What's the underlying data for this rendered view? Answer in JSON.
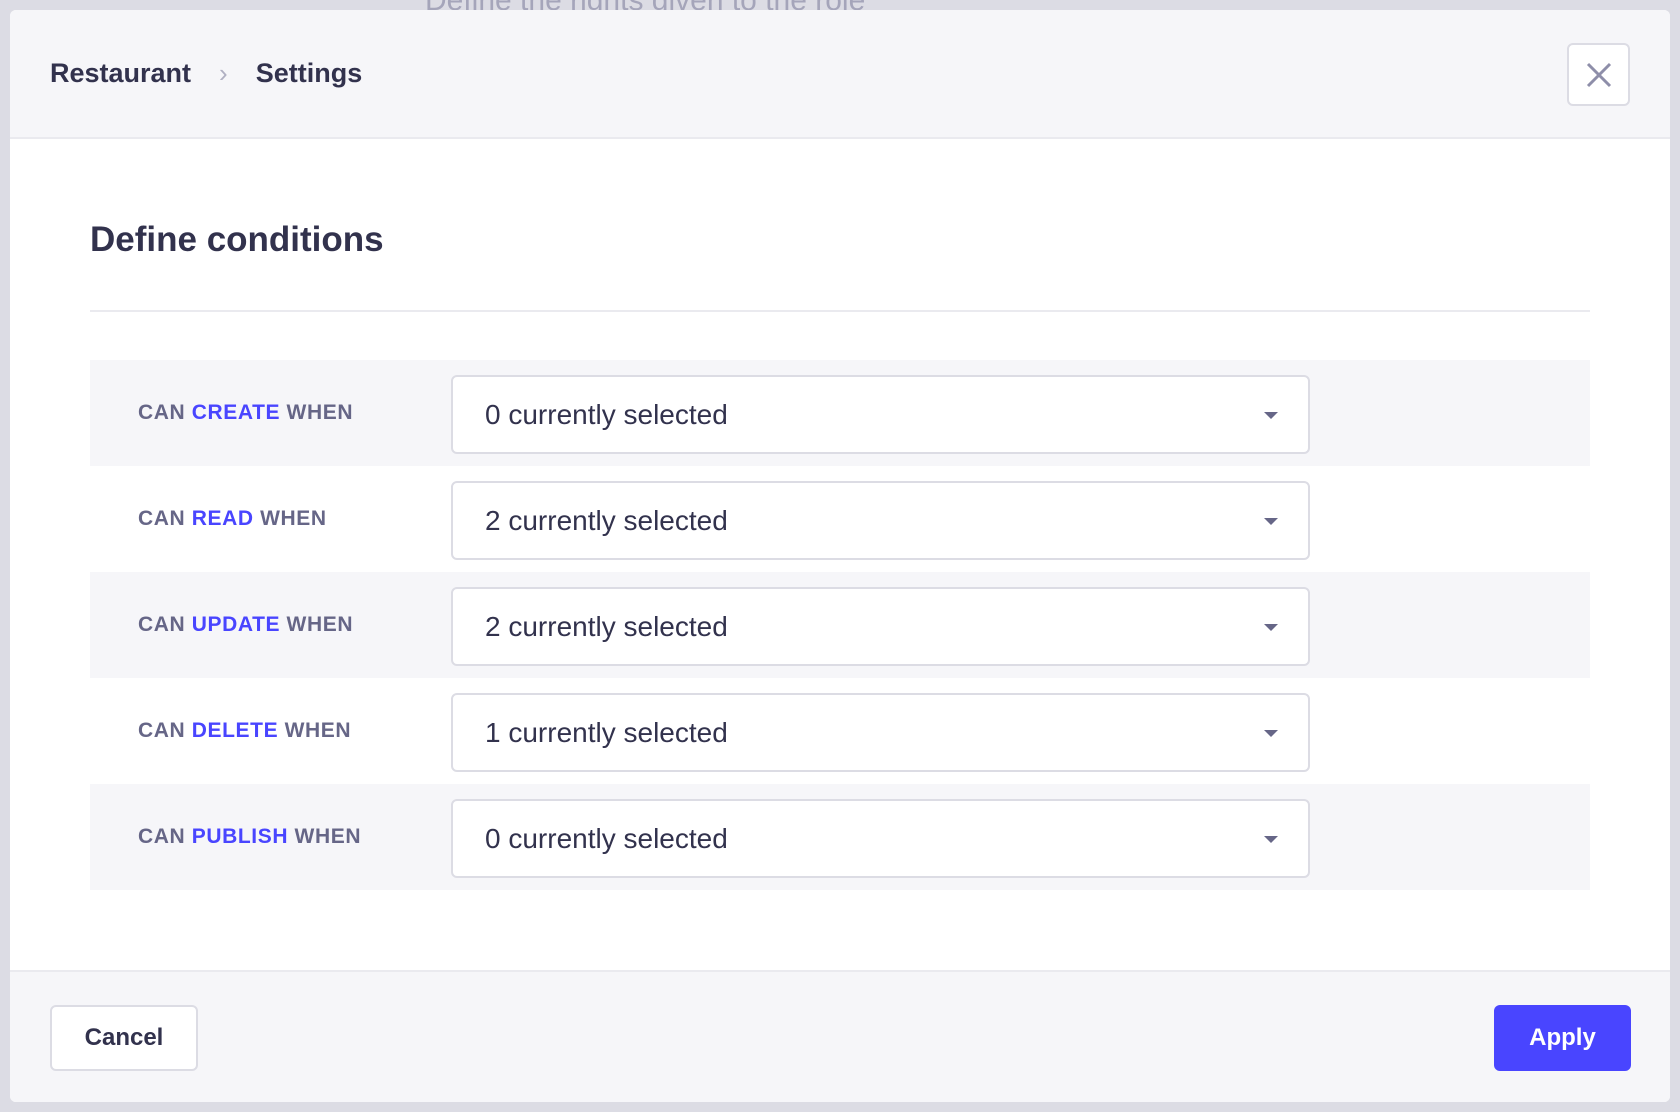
{
  "background": {
    "text": "Define the rights given to the role"
  },
  "header": {
    "breadcrumb": [
      "Restaurant",
      "Settings"
    ],
    "close_icon": "close-icon"
  },
  "title": "Define conditions",
  "rows": [
    {
      "prefix": "CAN ",
      "action": "CREATE",
      "suffix": " WHEN",
      "value": "0 currently selected"
    },
    {
      "prefix": "CAN ",
      "action": "READ",
      "suffix": " WHEN",
      "value": "2 currently selected"
    },
    {
      "prefix": "CAN ",
      "action": "UPDATE",
      "suffix": " WHEN",
      "value": "2 currently selected"
    },
    {
      "prefix": "CAN ",
      "action": "DELETE",
      "suffix": " WHEN",
      "value": "1 currently selected"
    },
    {
      "prefix": "CAN ",
      "action": "PUBLISH",
      "suffix": " WHEN",
      "value": "0 currently selected"
    }
  ],
  "footer": {
    "cancel": "Cancel",
    "apply": "Apply"
  },
  "colors": {
    "accent": "#4945ff",
    "text": "#32324d",
    "muted": "#666687"
  }
}
